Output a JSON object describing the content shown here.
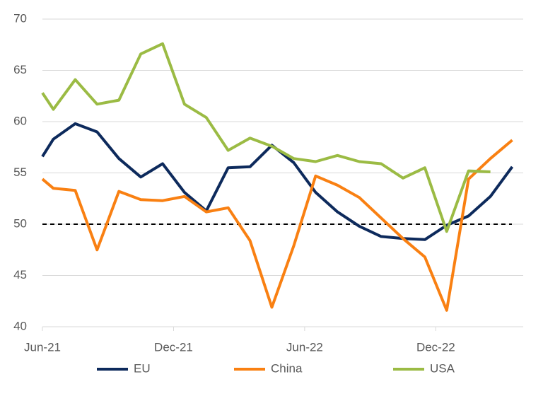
{
  "chart_data": {
    "type": "line",
    "x": [
      0,
      0.5,
      1.5,
      2.5,
      3.5,
      4.5,
      5.5,
      6.5,
      7.5,
      8.5,
      9.5,
      10.5,
      11.5,
      12.5,
      13.5,
      14.5,
      15.5,
      16.5,
      17.5,
      18.5,
      19.5,
      20.5,
      21.5
    ],
    "xlim": [
      0,
      22
    ],
    "xticks": [
      {
        "value": 0,
        "label": "Jun-21"
      },
      {
        "value": 6,
        "label": "Dec-21"
      },
      {
        "value": 12,
        "label": "Jun-22"
      },
      {
        "value": 18,
        "label": "Dec-22"
      }
    ],
    "ylim": [
      40,
      70
    ],
    "yticks": [
      40,
      45,
      50,
      55,
      60,
      65,
      70
    ],
    "grid": true,
    "reference_line": 50,
    "legend": "bottom",
    "series": [
      {
        "name": "EU",
        "color": "#0d2a5c",
        "values": [
          56.6,
          58.3,
          59.8,
          59.0,
          56.4,
          54.6,
          55.9,
          53.1,
          51.3,
          55.5,
          55.6,
          57.7,
          56.0,
          53.1,
          51.2,
          49.8,
          48.8,
          48.6,
          48.5,
          49.9,
          50.8,
          52.7,
          55.6
        ]
      },
      {
        "name": "China",
        "color": "#f98012",
        "values": [
          54.4,
          53.5,
          53.3,
          47.5,
          53.2,
          52.4,
          52.3,
          52.7,
          51.2,
          51.6,
          48.4,
          41.9,
          47.9,
          54.7,
          53.8,
          52.6,
          50.6,
          48.6,
          46.8,
          41.6,
          54.4,
          56.4,
          58.2
        ]
      },
      {
        "name": "USA",
        "color": "#9bbb44",
        "values": [
          62.8,
          61.2,
          64.1,
          61.7,
          62.1,
          66.6,
          67.6,
          61.7,
          60.4,
          57.2,
          58.4,
          57.6,
          56.4,
          56.1,
          56.7,
          56.1,
          55.9,
          54.5,
          55.5,
          49.3,
          55.2,
          55.1,
          null
        ]
      }
    ]
  }
}
